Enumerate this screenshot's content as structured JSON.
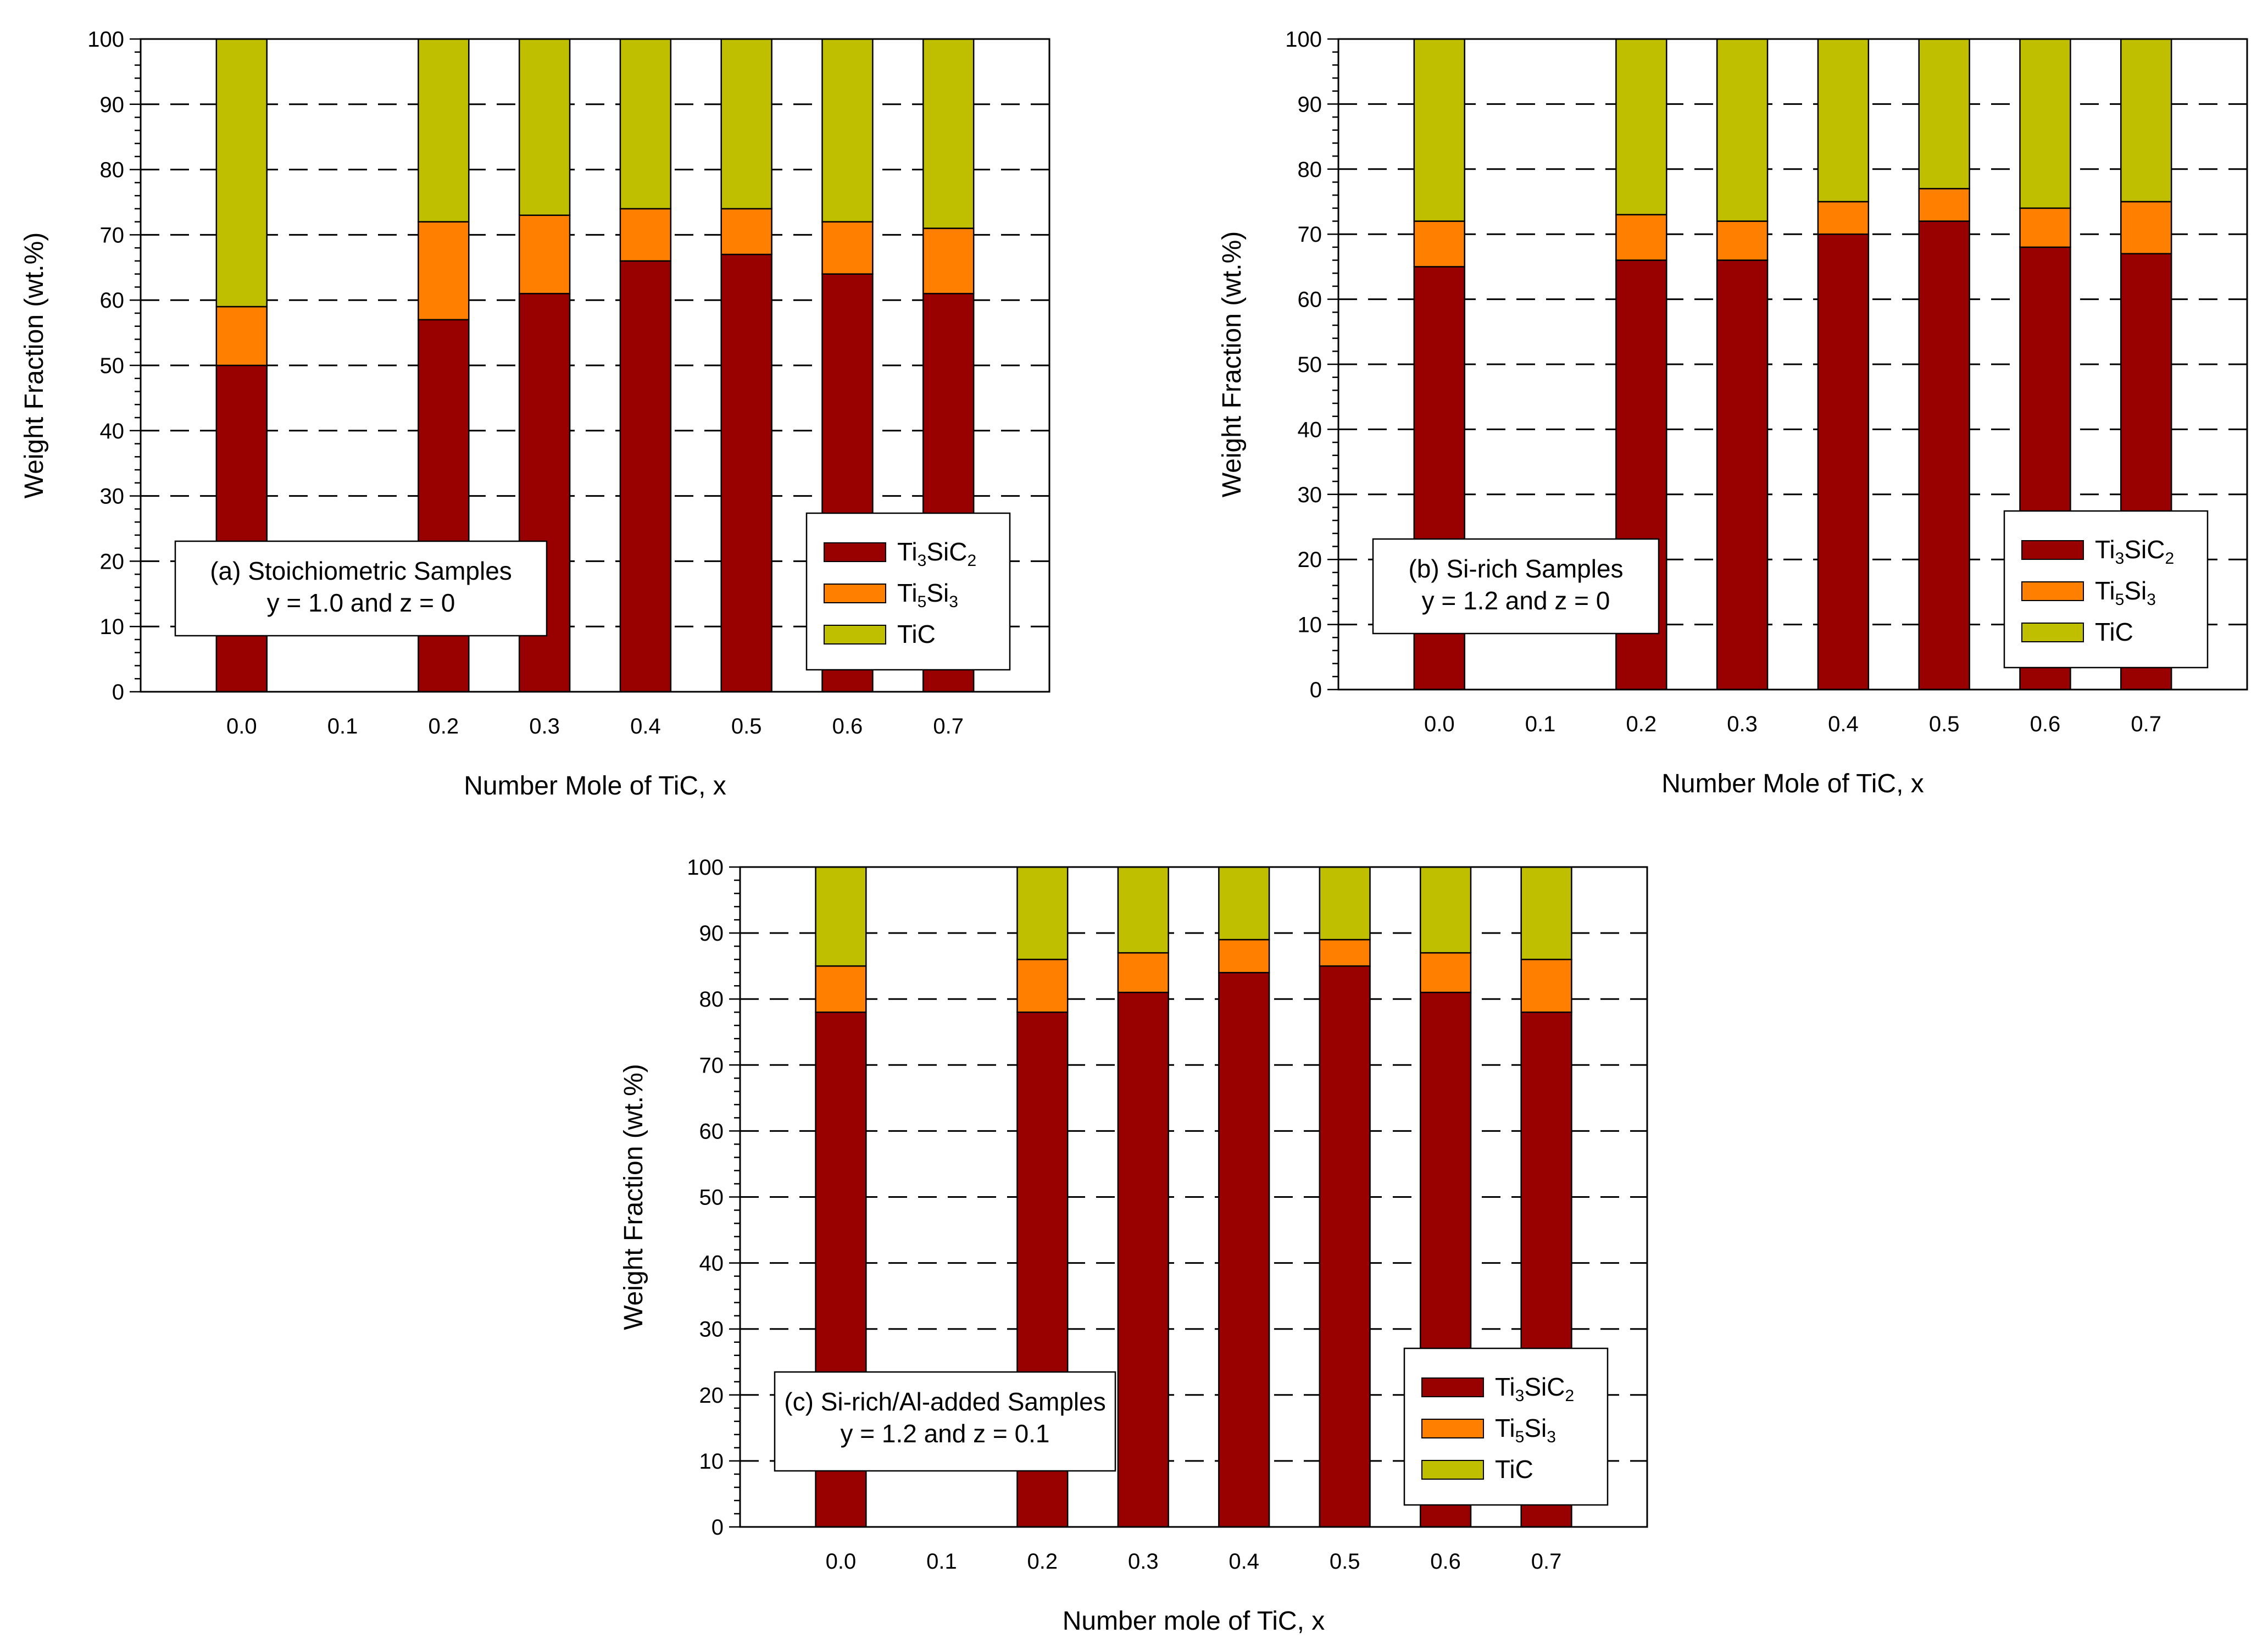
{
  "colors": {
    "ti3sic2": "#990000",
    "ti5si3": "#ff8000",
    "tic": "#bfbf00",
    "grid": "#000000",
    "background": "#ffffff"
  },
  "chart_data": [
    {
      "type": "bar",
      "stacked": true,
      "categories": [
        "0.0",
        "0.1",
        "0.2",
        "0.3",
        "0.4",
        "0.5",
        "0.6",
        "0.7"
      ],
      "series": [
        {
          "name": "Ti3SiC2",
          "values": [
            50,
            null,
            57,
            61,
            66,
            67,
            64,
            61
          ]
        },
        {
          "name": "Ti5Si3",
          "values": [
            9,
            null,
            15,
            12,
            8,
            7,
            8,
            10
          ]
        },
        {
          "name": "TiC",
          "values": [
            41,
            null,
            28,
            27,
            26,
            26,
            28,
            29
          ]
        }
      ],
      "legend": [
        {
          "base": "Ti",
          "sub1": "3",
          "mid": "SiC",
          "sub2": "2"
        },
        {
          "base": "Ti",
          "sub1": "5",
          "mid": "Si",
          "sub2": "3"
        },
        {
          "base": "TiC",
          "sub1": "",
          "mid": "",
          "sub2": ""
        }
      ],
      "legend_position": "bottom-right",
      "annotation": [
        "(a) Stoichiometric Samples",
        "y = 1.0 and z = 0"
      ],
      "annotation_position": "bottom-left",
      "xlabel": "Number Mole of TiC, x",
      "ylabel": "Weight Fraction (wt.%)",
      "ylim": [
        0,
        100
      ],
      "yticks": [
        0,
        10,
        20,
        30,
        40,
        50,
        60,
        70,
        80,
        90,
        100
      ],
      "grid": "horizontal dashed at 10..90"
    },
    {
      "type": "bar",
      "stacked": true,
      "categories": [
        "0.0",
        "0.1",
        "0.2",
        "0.3",
        "0.4",
        "0.5",
        "0.6",
        "0.7"
      ],
      "series": [
        {
          "name": "Ti3SiC2",
          "values": [
            65,
            null,
            66,
            66,
            70,
            72,
            68,
            67
          ]
        },
        {
          "name": "Ti5Si3",
          "values": [
            7,
            null,
            7,
            6,
            5,
            5,
            6,
            8
          ]
        },
        {
          "name": "TiC",
          "values": [
            28,
            null,
            27,
            28,
            25,
            23,
            26,
            25
          ]
        }
      ],
      "legend": [
        {
          "base": "Ti",
          "sub1": "3",
          "mid": "SiC",
          "sub2": "2"
        },
        {
          "base": "Ti",
          "sub1": "5",
          "mid": "Si",
          "sub2": "3"
        },
        {
          "base": "TiC",
          "sub1": "",
          "mid": "",
          "sub2": ""
        }
      ],
      "legend_position": "bottom-right",
      "annotation": [
        "(b) Si-rich Samples",
        "y = 1.2 and z = 0"
      ],
      "annotation_position": "bottom-left",
      "xlabel": "Number Mole of TiC, x",
      "ylabel": "Weight Fraction (wt.%)",
      "ylim": [
        0,
        100
      ],
      "yticks": [
        0,
        10,
        20,
        30,
        40,
        50,
        60,
        70,
        80,
        90,
        100
      ],
      "grid": "horizontal dashed at 10..90"
    },
    {
      "type": "bar",
      "stacked": true,
      "categories": [
        "0.0",
        "0.1",
        "0.2",
        "0.3",
        "0.4",
        "0.5",
        "0.6",
        "0.7"
      ],
      "series": [
        {
          "name": "Ti3SiC2",
          "values": [
            78,
            null,
            78,
            81,
            84,
            85,
            81,
            78
          ]
        },
        {
          "name": "Ti5Si3",
          "values": [
            7,
            null,
            8,
            6,
            5,
            4,
            6,
            8
          ]
        },
        {
          "name": "TiC",
          "values": [
            15,
            null,
            14,
            13,
            11,
            11,
            13,
            14
          ]
        }
      ],
      "legend": [
        {
          "base": "Ti",
          "sub1": "3",
          "mid": "SiC",
          "sub2": "2"
        },
        {
          "base": "Ti",
          "sub1": "5",
          "mid": "Si",
          "sub2": "3"
        },
        {
          "base": "TiC",
          "sub1": "",
          "mid": "",
          "sub2": ""
        }
      ],
      "legend_position": "bottom-right",
      "annotation": [
        "(c) Si-rich/Al-added Samples",
        "y = 1.2 and z = 0.1"
      ],
      "annotation_position": "bottom-left",
      "xlabel": "Number mole of TiC, x",
      "ylabel": "Weight Fraction (wt.%)",
      "ylim": [
        0,
        100
      ],
      "yticks": [
        0,
        10,
        20,
        30,
        40,
        50,
        60,
        70,
        80,
        90,
        100
      ],
      "grid": "horizontal dashed at 10..90"
    }
  ]
}
